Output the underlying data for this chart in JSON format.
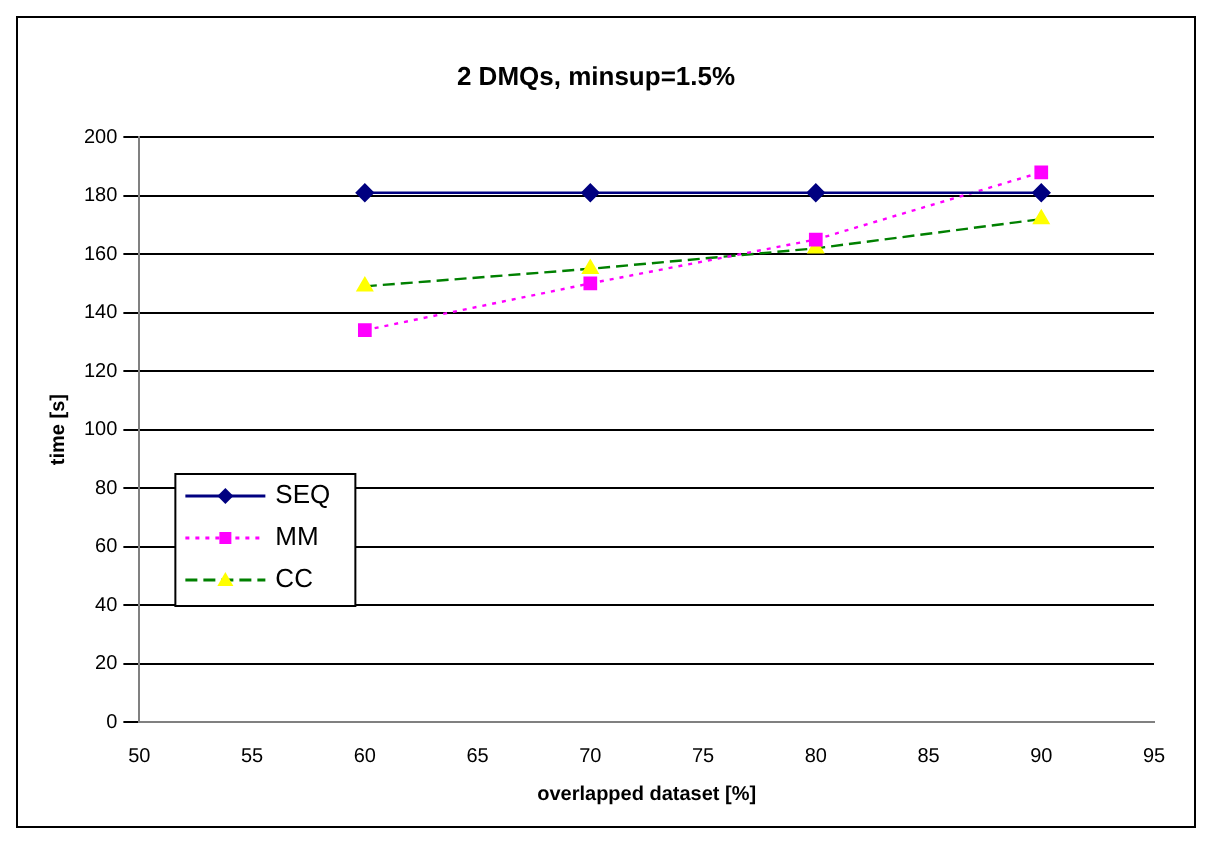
{
  "chart_data": {
    "type": "line",
    "title": "2 DMQs, minsup=1.5%",
    "xlabel": "overlapped dataset [%]",
    "ylabel": "time [s]",
    "x": [
      60,
      70,
      80,
      90
    ],
    "series": [
      {
        "name": "SEQ",
        "color": "#000080",
        "values": [
          181,
          181,
          181,
          181
        ],
        "marker": "diamond",
        "line_style": "solid"
      },
      {
        "name": "MM",
        "color": "#ff00ff",
        "values": [
          134,
          150,
          165,
          188
        ],
        "marker": "square",
        "line_style": "dotted"
      },
      {
        "name": "CC",
        "color": "#008000",
        "values": [
          149,
          155,
          162,
          172
        ],
        "marker": "triangle",
        "line_style": "dashed"
      }
    ],
    "xlim": [
      50,
      95
    ],
    "xticks": [
      50,
      55,
      60,
      65,
      70,
      75,
      80,
      85,
      90,
      95
    ],
    "ylim": [
      0,
      200
    ],
    "yticks": [
      0,
      20,
      40,
      60,
      80,
      100,
      120,
      140,
      160,
      180,
      200
    ],
    "grid": "y",
    "legend": "bottom left"
  }
}
